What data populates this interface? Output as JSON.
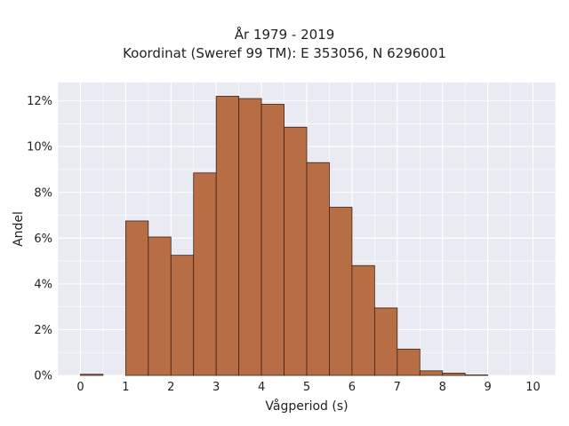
{
  "chart_data": {
    "type": "bar",
    "title_lines": [
      "År 1979 - 2019",
      "Koordinat (Sweref 99 TM): E 353056, N 6296001"
    ],
    "xlabel": "Vågperiod (s)",
    "ylabel": "Andel",
    "bin_edges": [
      0,
      0.5,
      1,
      1.5,
      2,
      2.5,
      3,
      3.5,
      4,
      4.5,
      5,
      5.5,
      6,
      6.5,
      7,
      7.5,
      8,
      8.5,
      9,
      9.5,
      10
    ],
    "values": [
      0.05,
      0,
      6.75,
      6.05,
      5.25,
      8.85,
      12.2,
      12.1,
      11.85,
      10.85,
      9.3,
      7.35,
      4.8,
      2.95,
      1.15,
      0.2,
      0.1,
      0.02,
      0,
      0
    ],
    "xlim": [
      -0.5,
      10.5
    ],
    "ylim": [
      0,
      12.8
    ],
    "xticks": [
      0,
      1,
      2,
      3,
      4,
      5,
      6,
      7,
      8,
      9,
      10
    ],
    "xtick_labels": [
      "0",
      "1",
      "2",
      "3",
      "4",
      "5",
      "6",
      "7",
      "8",
      "9",
      "10"
    ],
    "yticks": [
      0,
      2,
      4,
      6,
      8,
      10,
      12
    ],
    "ytick_labels": [
      "0%",
      "2%",
      "4%",
      "6%",
      "8%",
      "10%",
      "12%"
    ],
    "grid": true,
    "colors": {
      "bar_fill": "#b86e45",
      "bar_edge": "#3b2418",
      "plot_bg": "#eaeaf2",
      "grid": "#ffffff"
    }
  }
}
